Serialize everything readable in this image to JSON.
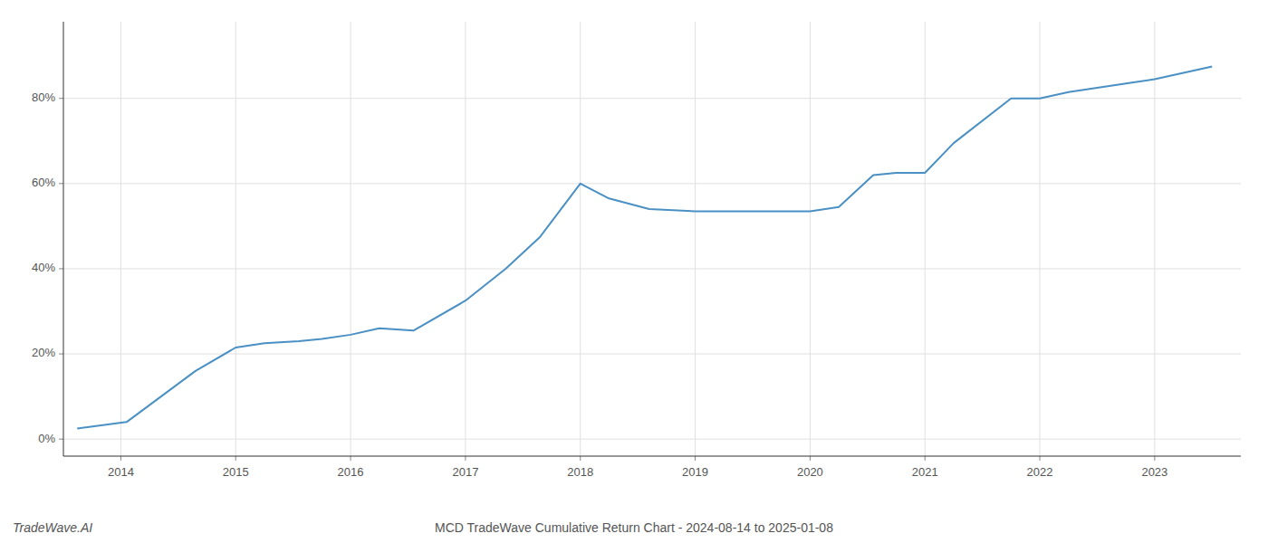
{
  "chart_data": {
    "type": "line",
    "title": "MCD TradeWave Cumulative Return Chart - 2024-08-14 to 2025-01-08",
    "annotations": [
      "TradeWave.AI"
    ],
    "x": [
      2013.62,
      2014.05,
      2014.35,
      2014.65,
      2015.0,
      2015.25,
      2015.55,
      2015.75,
      2016.0,
      2016.25,
      2016.55,
      2017.0,
      2017.35,
      2017.65,
      2018.0,
      2018.25,
      2018.6,
      2019.0,
      2019.25,
      2019.5,
      2019.75,
      2020.0,
      2020.25,
      2020.55,
      2020.75,
      2021.0,
      2021.25,
      2021.75,
      2022.0,
      2022.25,
      2022.5,
      2022.75,
      2023.0,
      2023.5
    ],
    "values": [
      0.025,
      0.04,
      0.1,
      0.16,
      0.215,
      0.225,
      0.23,
      0.235,
      0.245,
      0.26,
      0.255,
      0.325,
      0.4,
      0.475,
      0.6,
      0.565,
      0.54,
      0.535,
      0.535,
      0.535,
      0.535,
      0.535,
      0.545,
      0.62,
      0.625,
      0.625,
      0.695,
      0.8,
      0.8,
      0.815,
      0.825,
      0.835,
      0.845,
      0.875
    ],
    "color": "#4a90c4",
    "xlim": [
      2013.5,
      2023.75
    ],
    "ylim": [
      -0.04,
      0.98
    ],
    "xticks": [
      2014,
      2015,
      2016,
      2017,
      2018,
      2019,
      2020,
      2021,
      2022,
      2023
    ],
    "yticks": [
      {
        "value": 0.0,
        "label": "0%"
      },
      {
        "value": 0.2,
        "label": "20%"
      },
      {
        "value": 0.4,
        "label": "40%"
      },
      {
        "value": 0.6,
        "label": "60%"
      },
      {
        "value": 0.8,
        "label": "80%"
      }
    ],
    "grid": true
  }
}
